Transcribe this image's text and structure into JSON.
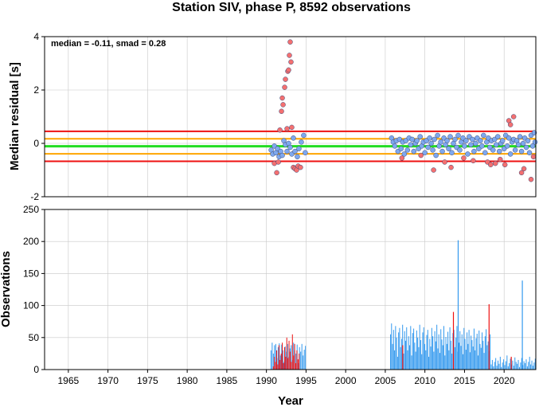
{
  "chart_data": [
    {
      "type": "scatter",
      "title": "Station SIV, phase P, 8592 observations",
      "ylabel": "Median residual [s]",
      "annotation": "median = -0.11, smad = 0.28",
      "xlim": [
        1962,
        2024
      ],
      "ylim": [
        -2,
        4
      ],
      "yticks": [
        -2,
        0,
        2,
        4
      ],
      "grid": true,
      "reference_lines": [
        {
          "name": "median",
          "value": -0.11,
          "color": "#22dd22"
        },
        {
          "name": "median - 1 smad",
          "value": -0.39,
          "color": "#ffa500"
        },
        {
          "name": "median + 1 smad",
          "value": 0.17,
          "color": "#ffa500"
        },
        {
          "name": "median - 2 smad",
          "value": -0.67,
          "color": "#ee1111"
        },
        {
          "name": "median + 2 smad",
          "value": 0.45,
          "color": "#ee1111"
        }
      ],
      "series": [
        {
          "color": "#7fa8ee",
          "points": [
            [
              1990.6,
              -0.25
            ],
            [
              1990.8,
              -0.4
            ],
            [
              1991.0,
              -0.1
            ],
            [
              1991.2,
              -0.35
            ],
            [
              1991.4,
              -0.2
            ],
            [
              1991.6,
              -0.5
            ],
            [
              1991.8,
              -0.3
            ],
            [
              1992.0,
              -0.45
            ],
            [
              1992.2,
              0.1
            ],
            [
              1992.4,
              -0.05
            ],
            [
              1992.6,
              -0.3
            ],
            [
              1992.8,
              0.0
            ],
            [
              1993.0,
              -0.15
            ],
            [
              1993.2,
              -0.4
            ],
            [
              1993.4,
              0.2
            ],
            [
              1993.6,
              -0.3
            ],
            [
              1993.9,
              -0.5
            ],
            [
              1994.1,
              -0.2
            ],
            [
              1994.4,
              0.05
            ],
            [
              1994.7,
              0.3
            ],
            [
              1994.9,
              -0.35
            ],
            [
              2005.8,
              0.2
            ],
            [
              2006.0,
              0.05
            ],
            [
              2006.2,
              -0.1
            ],
            [
              2006.4,
              0.1
            ],
            [
              2006.6,
              -0.3
            ],
            [
              2006.8,
              0.15
            ],
            [
              2007.0,
              -0.2
            ],
            [
              2007.2,
              0.05
            ],
            [
              2007.4,
              -0.4
            ],
            [
              2007.6,
              0.1
            ],
            [
              2007.8,
              -0.25
            ],
            [
              2008.0,
              0.2
            ],
            [
              2008.2,
              -0.05
            ],
            [
              2008.4,
              0.15
            ],
            [
              2008.6,
              -0.3
            ],
            [
              2008.8,
              0.0
            ],
            [
              2009.0,
              0.1
            ],
            [
              2009.2,
              -0.2
            ],
            [
              2009.4,
              0.25
            ],
            [
              2009.6,
              -0.1
            ],
            [
              2009.8,
              0.05
            ],
            [
              2010.0,
              -0.35
            ],
            [
              2010.2,
              0.1
            ],
            [
              2010.4,
              -0.15
            ],
            [
              2010.6,
              0.2
            ],
            [
              2010.8,
              0.0
            ],
            [
              2011.0,
              -0.25
            ],
            [
              2011.2,
              0.15
            ],
            [
              2011.4,
              -0.45
            ],
            [
              2011.6,
              0.3
            ],
            [
              2011.8,
              -0.1
            ],
            [
              2012.0,
              0.05
            ],
            [
              2012.2,
              -0.3
            ],
            [
              2012.4,
              0.2
            ],
            [
              2012.6,
              -0.05
            ],
            [
              2012.8,
              0.1
            ],
            [
              2013.0,
              -0.2
            ],
            [
              2013.2,
              0.25
            ],
            [
              2013.4,
              -0.35
            ],
            [
              2013.6,
              0.0
            ],
            [
              2013.8,
              0.15
            ],
            [
              2014.0,
              -0.15
            ],
            [
              2014.2,
              0.3
            ],
            [
              2014.4,
              -0.25
            ],
            [
              2014.6,
              0.05
            ],
            [
              2014.8,
              0.2
            ],
            [
              2015.0,
              -0.1
            ],
            [
              2015.2,
              0.1
            ],
            [
              2015.4,
              -0.4
            ],
            [
              2015.6,
              0.25
            ],
            [
              2015.8,
              -0.05
            ],
            [
              2016.0,
              0.15
            ],
            [
              2016.2,
              -0.3
            ],
            [
              2016.4,
              0.0
            ],
            [
              2016.6,
              0.2
            ],
            [
              2016.8,
              -0.2
            ],
            [
              2017.0,
              0.1
            ],
            [
              2017.2,
              -0.1
            ],
            [
              2017.4,
              0.3
            ],
            [
              2017.6,
              -0.35
            ],
            [
              2017.8,
              0.05
            ],
            [
              2018.0,
              0.2
            ],
            [
              2018.2,
              -0.15
            ],
            [
              2018.4,
              0.1
            ],
            [
              2018.6,
              -0.25
            ],
            [
              2018.8,
              0.15
            ],
            [
              2019.0,
              -0.05
            ],
            [
              2019.2,
              0.25
            ],
            [
              2019.4,
              -0.3
            ],
            [
              2019.6,
              0.0
            ],
            [
              2019.8,
              0.1
            ],
            [
              2020.0,
              -0.2
            ],
            [
              2020.2,
              0.3
            ],
            [
              2020.4,
              -0.1
            ],
            [
              2020.6,
              0.2
            ],
            [
              2020.8,
              -0.4
            ],
            [
              2021.0,
              0.05
            ],
            [
              2021.2,
              0.15
            ],
            [
              2021.4,
              -0.25
            ],
            [
              2021.6,
              0.1
            ],
            [
              2021.8,
              -0.05
            ],
            [
              2022.0,
              0.25
            ],
            [
              2022.2,
              -0.3
            ],
            [
              2022.4,
              0.0
            ],
            [
              2022.6,
              0.2
            ],
            [
              2022.8,
              -0.15
            ],
            [
              2023.0,
              0.1
            ],
            [
              2023.2,
              -0.35
            ],
            [
              2023.4,
              0.3
            ],
            [
              2023.6,
              -0.1
            ],
            [
              2023.8,
              0.4
            ],
            [
              2023.9,
              0.05
            ]
          ]
        },
        {
          "color": "#f47070",
          "points": [
            [
              1991.0,
              -0.75
            ],
            [
              1991.3,
              -1.1
            ],
            [
              1991.5,
              -0.7
            ],
            [
              1991.7,
              0.5
            ],
            [
              1991.9,
              1.2
            ],
            [
              1992.0,
              1.7
            ],
            [
              1992.1,
              1.45
            ],
            [
              1992.3,
              2.1
            ],
            [
              1992.4,
              2.4
            ],
            [
              1992.6,
              0.55
            ],
            [
              1992.7,
              2.7
            ],
            [
              1992.8,
              2.75
            ],
            [
              1992.9,
              3.3
            ],
            [
              1993.0,
              3.8
            ],
            [
              1993.1,
              3.05
            ],
            [
              1993.2,
              0.6
            ],
            [
              1993.4,
              -0.9
            ],
            [
              1993.6,
              -0.95
            ],
            [
              1993.8,
              -1.0
            ],
            [
              1994.0,
              -0.85
            ],
            [
              1994.3,
              -0.9
            ],
            [
              2007.1,
              -0.55
            ],
            [
              2009.5,
              -0.45
            ],
            [
              2011.1,
              -1.0
            ],
            [
              2012.5,
              -0.7
            ],
            [
              2013.3,
              -0.9
            ],
            [
              2014.9,
              -0.55
            ],
            [
              2016.1,
              -0.65
            ],
            [
              2017.9,
              -0.7
            ],
            [
              2018.3,
              -0.8
            ],
            [
              2018.9,
              -0.75
            ],
            [
              2019.5,
              -0.6
            ],
            [
              2020.1,
              -0.8
            ],
            [
              2020.6,
              0.85
            ],
            [
              2020.8,
              0.7
            ],
            [
              2021.2,
              1.0
            ],
            [
              2022.2,
              -1.1
            ],
            [
              2022.5,
              -0.95
            ],
            [
              2023.4,
              -1.35
            ],
            [
              2023.7,
              -0.5
            ]
          ]
        }
      ]
    },
    {
      "type": "bar",
      "xlabel": "Year",
      "ylabel": "Observations",
      "xlim": [
        1962,
        2024
      ],
      "ylim": [
        0,
        250
      ],
      "yticks": [
        0,
        50,
        100,
        150,
        200,
        250
      ],
      "xticks": [
        1965,
        1970,
        1975,
        1980,
        1985,
        1990,
        1995,
        2000,
        2005,
        2010,
        2015,
        2020
      ],
      "grid": true,
      "series": [
        {
          "color": "#3399ee",
          "segments": [
            {
              "x0": 1990.5,
              "x1": 1995.0,
              "values": [
                30,
                42,
                25,
                38,
                40,
                18,
                35,
                41,
                22,
                39,
                30,
                12,
                36,
                28,
                40,
                20,
                33,
                38,
                15,
                42,
                30,
                25,
                39,
                10,
                35,
                28,
                40,
                22,
                31,
                37
              ]
            },
            {
              "x0": 2005.6,
              "x1": 2018.3,
              "values": [
                55,
                72,
                40,
                62,
                30,
                68,
                50,
                20,
                58,
                65,
                35,
                48,
                70,
                25,
                60,
                45,
                66,
                30,
                52,
                38,
                68,
                22,
                57,
                64,
                42,
                28,
                61,
                50,
                35,
                70,
                46,
                24,
                58,
                66,
                40,
                30,
                54,
                62,
                20,
                48,
                36,
                65,
                52,
                28,
                60,
                44,
                70,
                33,
                55,
                26,
                63,
                47,
                38,
                68,
                22,
                51,
                40,
                59,
                30,
                66,
                45,
                25,
                57,
                62,
                35,
                50,
                68,
                28,
                42,
                60,
                37,
                55,
                24,
                65,
                48,
                31,
                58,
                40,
                62,
                27,
                53,
                46,
                36,
                64,
                30,
                49,
                56,
                22,
                61,
                40,
                34,
                58,
                45,
                26,
                52,
                63,
                38,
                44,
                29,
                55
              ]
            },
            {
              "x0": 2018.3,
              "x1": 2024.0,
              "values": [
                8,
                15,
                5,
                12,
                18,
                6,
                14,
                9,
                20,
                4,
                11,
                16,
                7,
                13,
                22,
                5,
                10,
                17,
                8,
                14,
                6,
                19,
                12,
                9,
                15,
                4,
                11,
                18,
                7,
                13,
                10,
                16,
                5,
                12,
                20,
                8,
                14,
                6,
                11,
                17
              ]
            }
          ],
          "spikes": [
            [
              2014.2,
              202
            ],
            [
              2022.3,
              139
            ]
          ]
        },
        {
          "color": "#ee1111",
          "segments": [
            {
              "x0": 1990.8,
              "x1": 1994.2,
              "values": [
                5,
                20,
                12,
                30,
                8,
                38,
                15,
                25,
                42,
                10,
                35,
                20,
                50,
                18,
                45,
                28,
                12,
                55,
                22,
                40,
                10,
                30,
                16,
                25
              ]
            }
          ],
          "spikes": [
            [
              2007.2,
              38
            ],
            [
              2013.6,
              90
            ],
            [
              2018.1,
              102
            ],
            [
              2020.9,
              20
            ]
          ]
        }
      ]
    }
  ]
}
